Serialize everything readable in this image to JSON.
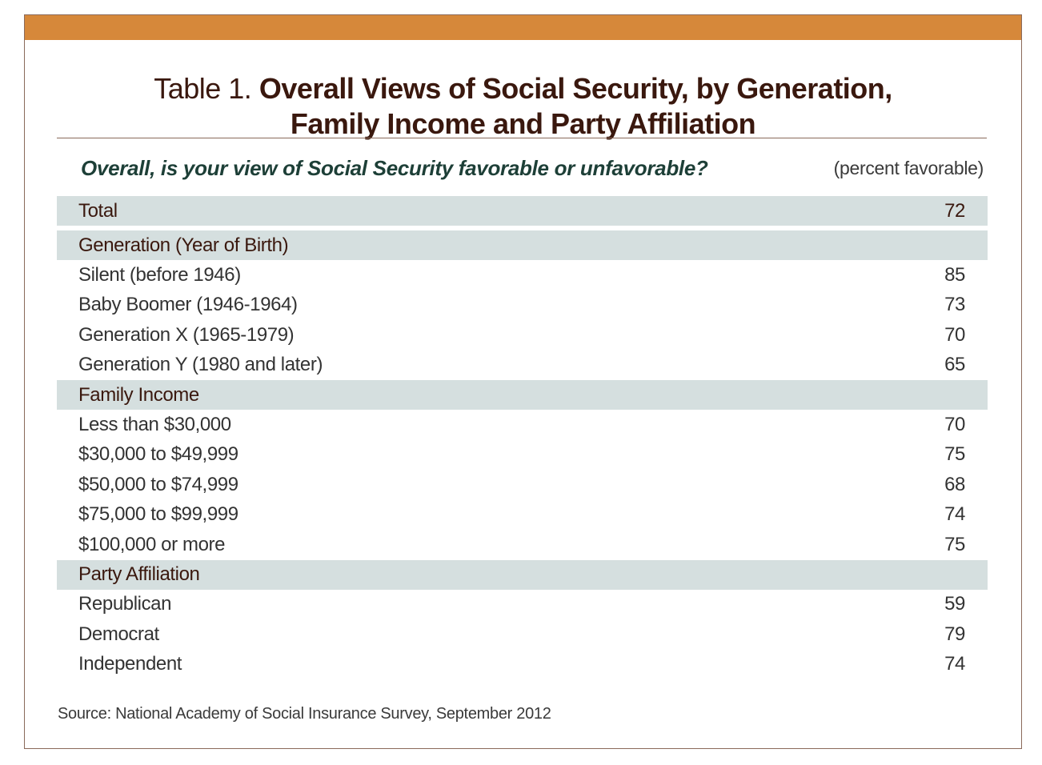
{
  "title": {
    "prefix": "Table 1.",
    "line1": "Overall Views of Social Security, by Generation,",
    "line2": "Family Income and Party Affiliation"
  },
  "question": "Overall, is your view of Social Security favorable or unfavorable?",
  "units": "(percent favorable)",
  "colors": {
    "top_bar": "#d6883a",
    "section_band": "#d5dfdf",
    "title_text": "#3a180e",
    "question_text": "#1d3f37"
  },
  "total": {
    "label": "Total",
    "value": "72"
  },
  "sections": [
    {
      "heading": "Generation (Year of Birth)",
      "rows": [
        {
          "label": "Silent (before 1946)",
          "value": "85"
        },
        {
          "label": "Baby Boomer (1946-1964)",
          "value": "73"
        },
        {
          "label": "Generation X (1965-1979)",
          "value": "70"
        },
        {
          "label": "Generation Y (1980 and later)",
          "value": "65"
        }
      ]
    },
    {
      "heading": "Family Income",
      "rows": [
        {
          "label": "Less than $30,000",
          "value": "70"
        },
        {
          "label": "$30,000 to $49,999",
          "value": "75"
        },
        {
          "label": "$50,000 to $74,999",
          "value": "68"
        },
        {
          "label": "$75,000 to $99,999",
          "value": "74"
        },
        {
          "label": "$100,000 or more",
          "value": "75"
        }
      ]
    },
    {
      "heading": "Party Affiliation",
      "rows": [
        {
          "label": "Republican",
          "value": "59"
        },
        {
          "label": "Democrat",
          "value": "79"
        },
        {
          "label": "Independent",
          "value": "74"
        }
      ]
    }
  ],
  "source": "Source: National Academy of Social Insurance Survey, September 2012"
}
